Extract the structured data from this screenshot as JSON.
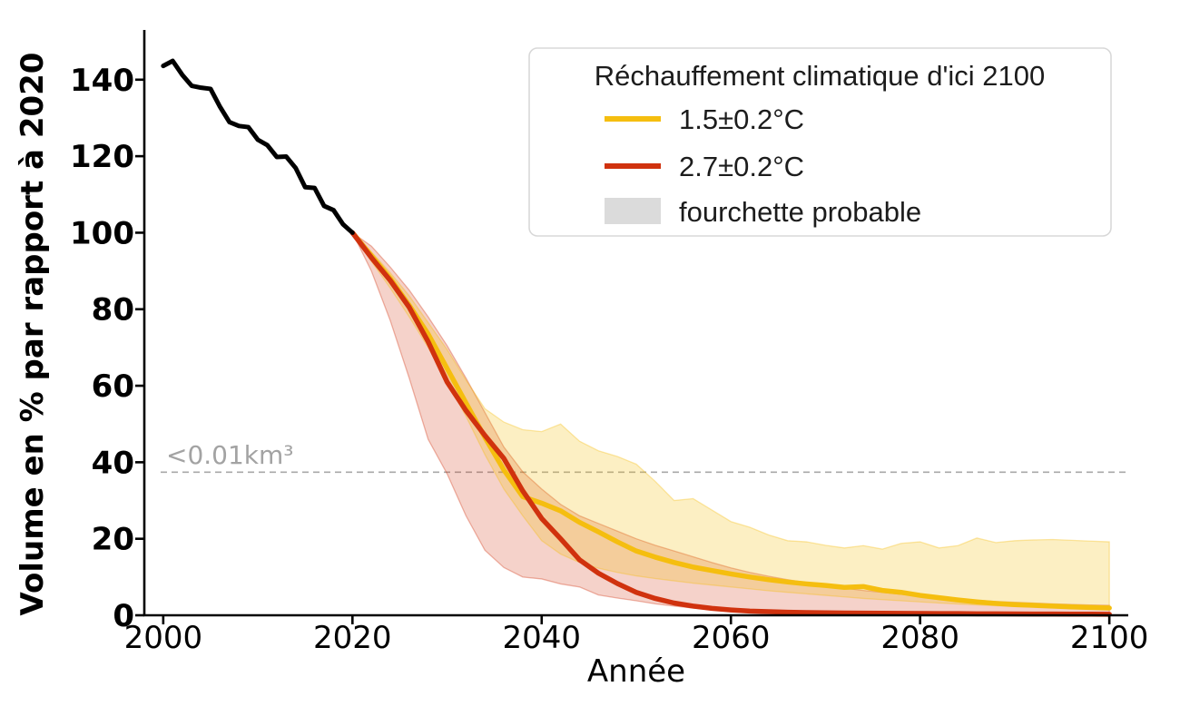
{
  "chart_data": {
    "type": "line",
    "xlabel": "Année",
    "ylabel": "Volume en % par rapport à 2020",
    "xlim": [
      1998,
      2102
    ],
    "ylim": [
      0,
      153
    ],
    "xticks": [
      2000,
      2020,
      2040,
      2060,
      2080,
      2100
    ],
    "yticks": [
      0,
      20,
      40,
      60,
      80,
      100,
      120,
      140
    ],
    "grid": false,
    "colors": {
      "historical": "#000000",
      "warming_1_5": "#F5BE0F",
      "warming_2_7": "#D0320E",
      "band_gray_swatch": "#DBDBDB",
      "threshold_gray": "#a8a8a8"
    },
    "threshold_line": {
      "y": 37.4,
      "label": "<0.01km³",
      "style": "dashed",
      "color": "#a8a8a8"
    },
    "legend": {
      "title": "Réchauffement climatique d'ici 2100",
      "position": "upper right",
      "entries": [
        {
          "id": "warming-1-5",
          "type": "line",
          "color": "#F5BE0F",
          "label": "1.5±0.2°C"
        },
        {
          "id": "warming-2-7",
          "type": "line",
          "color": "#D0320E",
          "label": "2.7±0.2°C"
        },
        {
          "id": "likely-range",
          "type": "patch",
          "color": "#DBDBDB",
          "label": "fourchette probable"
        }
      ]
    },
    "series": [
      {
        "id": "historical",
        "color": "#000000",
        "x": [
          2000,
          2001,
          2002,
          2003,
          2004,
          2005,
          2006,
          2007,
          2008,
          2009,
          2010,
          2011,
          2012,
          2013,
          2014,
          2015,
          2016,
          2017,
          2018,
          2019,
          2020
        ],
        "y": [
          143.6,
          144.9,
          141.3,
          138.4,
          137.9,
          137.6,
          132.9,
          128.9,
          127.9,
          127.6,
          124.3,
          122.9,
          119.8,
          119.9,
          116.9,
          111.9,
          111.7,
          107,
          105.9,
          102.2,
          100
        ]
      },
      {
        "id": "warming-1-5",
        "color": "#F5BE0F",
        "x": [
          2020,
          2022,
          2024,
          2026,
          2028,
          2030,
          2032,
          2034,
          2036,
          2038,
          2040,
          2042,
          2044,
          2046,
          2048,
          2050,
          2052,
          2054,
          2056,
          2058,
          2060,
          2062,
          2064,
          2066,
          2068,
          2070,
          2072,
          2074,
          2076,
          2078,
          2080,
          2082,
          2084,
          2086,
          2088,
          2090,
          2092,
          2094,
          2096,
          2098,
          2100
        ],
        "y": [
          100,
          94,
          88,
          81,
          73.5,
          64.5,
          55.5,
          46.5,
          38,
          31,
          29.3,
          27.3,
          24.3,
          21.8,
          19.2,
          16.8,
          15.2,
          13.8,
          12.6,
          11.7,
          10.8,
          10,
          9.3,
          8.7,
          8.2,
          7.8,
          7.3,
          7.5,
          6.5,
          6,
          5.2,
          4.6,
          4,
          3.5,
          3.1,
          2.8,
          2.6,
          2.4,
          2.2,
          2.05,
          1.9
        ],
        "band_upper": [
          100,
          95,
          89.5,
          83.5,
          76.5,
          69.5,
          61.5,
          54,
          50.5,
          48.5,
          48,
          50,
          45.5,
          43,
          41.5,
          39.5,
          35,
          30,
          30.5,
          27.5,
          24.5,
          23,
          21,
          19.5,
          19.2,
          18.3,
          17.6,
          18.2,
          17.3,
          18.8,
          19.2,
          17.6,
          18.2,
          20.2,
          19,
          19.5,
          19.7,
          19.8,
          19.6,
          19.4,
          19.2
        ],
        "band_lower": [
          100,
          92.5,
          85.5,
          78,
          70,
          61,
          52,
          42,
          33,
          26,
          19.5,
          16,
          13.8,
          12.3,
          11.2,
          10.3,
          9.6,
          9,
          8.4,
          7.9,
          7.4,
          6.9,
          6.4,
          6,
          5.6,
          5.2,
          4.8,
          4.4,
          4.1,
          3.8,
          3.5,
          3.2,
          2.95,
          2.7,
          2.5,
          2.3,
          2.15,
          2.05,
          1.95,
          1.87,
          1.8
        ]
      },
      {
        "id": "warming-2-7",
        "color": "#D0320E",
        "x": [
          2020,
          2022,
          2024,
          2026,
          2028,
          2030,
          2032,
          2034,
          2036,
          2038,
          2040,
          2042,
          2044,
          2046,
          2048,
          2050,
          2052,
          2054,
          2056,
          2058,
          2060,
          2062,
          2064,
          2066,
          2068,
          2070,
          2072,
          2074,
          2076,
          2078,
          2080,
          2082,
          2084,
          2086,
          2088,
          2090,
          2092,
          2094,
          2096,
          2098,
          2100
        ],
        "y": [
          100,
          93.5,
          87.5,
          80.5,
          71.5,
          61,
          53.5,
          47,
          41,
          32.5,
          25.3,
          20,
          14.5,
          11,
          8.3,
          6,
          4.4,
          3.2,
          2.4,
          1.8,
          1.4,
          1.1,
          0.95,
          0.8,
          0.72,
          0.65,
          0.6,
          0.57,
          0.54,
          0.5,
          0.48,
          0.45,
          0.43,
          0.4,
          0.38,
          0.36,
          0.34,
          0.32,
          0.3,
          0.3,
          0.28
        ],
        "band_upper": [
          100,
          96.5,
          91,
          85,
          78,
          70.5,
          62,
          53,
          44,
          37.5,
          33,
          29,
          26,
          24,
          22,
          20,
          18.3,
          16.8,
          15.3,
          13.8,
          12.4,
          11.2,
          10.2,
          9.3,
          8.5,
          7.8,
          7.1,
          6.5,
          6,
          5.5,
          5,
          4.6,
          4.2,
          3.9,
          3.6,
          3.4,
          3.2,
          3,
          2.85,
          2.7,
          2.6
        ],
        "band_lower": [
          100,
          90,
          77,
          62,
          46,
          37,
          26,
          17,
          12.5,
          10,
          9.5,
          8.2,
          7.4,
          5.3,
          4.5,
          3.8,
          3,
          2.4,
          1.9,
          1.5,
          1.2,
          1,
          0.9,
          0.8,
          0.7,
          0.65,
          0.6,
          0.55,
          0.5,
          0.5,
          0.45,
          0.42,
          0.4,
          0.38,
          0.36,
          0.34,
          0.33,
          0.32,
          0.31,
          0.3,
          0.3
        ]
      }
    ]
  }
}
